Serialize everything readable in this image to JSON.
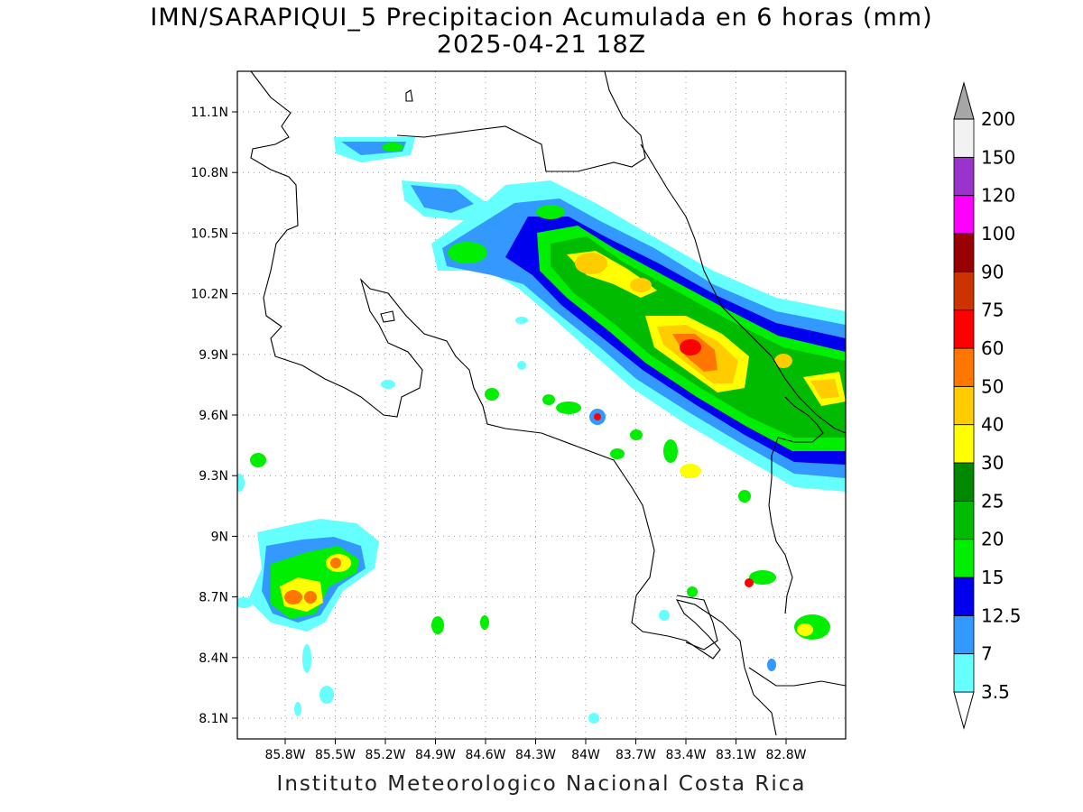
{
  "header": {
    "title": "IMN/SARAPIQUI_5 Precipitacion Acumulada en 6 horas (mm)",
    "subtitle": "2025-04-21 18Z"
  },
  "footer": {
    "credit": "Instituto Meteorologico Nacional Costa Rica"
  },
  "map": {
    "lat_range": [
      8.0,
      11.3
    ],
    "lon_range": [
      -86.0,
      -83.0
    ],
    "lat_ticks": [
      "11.1N",
      "10.8N",
      "10.5N",
      "10.2N",
      "9.9N",
      "9.6N",
      "9.3N",
      "9N",
      "8.7N",
      "8.4N",
      "8.1N"
    ],
    "lon_ticks": [
      "85.8W",
      "85.5W",
      "85.2W",
      "84.9W",
      "84.6W",
      "84.3W",
      "84W",
      "83.7W",
      "83.4W",
      "83.1W",
      "82.8W"
    ],
    "gridlines": "dotted"
  },
  "colorbar": {
    "labels": [
      "3.5",
      "7",
      "12.5",
      "15",
      "20",
      "25",
      "30",
      "40",
      "50",
      "60",
      "75",
      "90",
      "100",
      "120",
      "150",
      "200"
    ],
    "colors": [
      "#ffffff",
      "#66ffff",
      "#3399ff",
      "#0000ee",
      "#00ee00",
      "#00bb00",
      "#008800",
      "#ffff00",
      "#ffcc00",
      "#ff7700",
      "#ff0000",
      "#cc3300",
      "#990000",
      "#ff00ff",
      "#9933cc",
      "#f2f2f2",
      "#a6a6a6"
    ]
  },
  "precip_levels": {
    "c1": "#66ffff",
    "c2": "#3399ff",
    "c3": "#0000ee",
    "c4": "#00ee00",
    "c5": "#00bb00",
    "c6": "#ffff00",
    "c7": "#ffcc00",
    "c8": "#ff7700",
    "c9": "#ff0000"
  }
}
